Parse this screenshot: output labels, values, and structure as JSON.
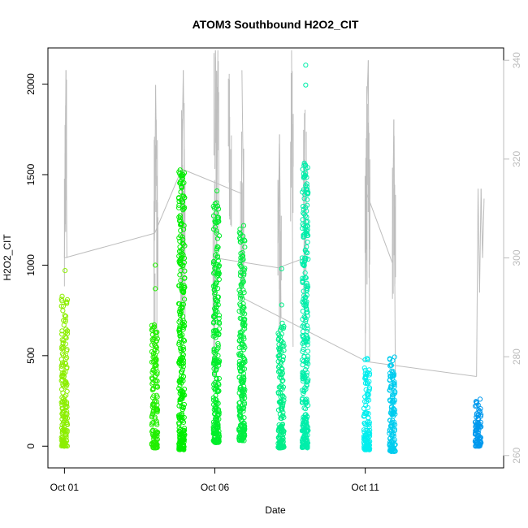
{
  "chart_data": {
    "type": "scatter",
    "title": "ATOM3 Southbound H2O2_CIT",
    "xlabel": "Date",
    "ylabel": "H2O2_CIT",
    "x_ticks": [
      "Oct 01",
      "Oct 06",
      "Oct 11"
    ],
    "x_tick_values": [
      0,
      5,
      10
    ],
    "xlim": [
      -0.55,
      14.6
    ],
    "ylim": [
      -120,
      2200
    ],
    "y_ticks": [
      0,
      500,
      1000,
      1500,
      2000
    ],
    "y2_ticks": [
      260,
      280,
      300,
      320,
      340
    ],
    "y2lim": [
      257.5,
      342.5
    ],
    "grid": false,
    "point_series": [
      {
        "day": 0.0,
        "ymin": 0,
        "ymax": 840,
        "outliers": [
          970
        ],
        "color": "#8cee00"
      },
      {
        "day": 3.0,
        "ymin": -10,
        "ymax": 680,
        "outliers": [
          1000,
          870
        ],
        "color": "#22ee00"
      },
      {
        "day": 3.9,
        "ymin": -20,
        "ymax": 1530,
        "outliers": [
          1380
        ],
        "color": "#00ee00"
      },
      {
        "day": 5.05,
        "ymin": 20,
        "ymax": 1350,
        "outliers": [
          1410
        ],
        "color": "#00ee2a"
      },
      {
        "day": 5.9,
        "ymin": 30,
        "ymax": 1240,
        "outliers": [],
        "color": "#00ee40"
      },
      {
        "day": 7.2,
        "ymin": -10,
        "ymax": 680,
        "outliers": [
          980,
          780
        ],
        "color": "#00ee88"
      },
      {
        "day": 8.0,
        "ymin": -10,
        "ymax": 1570,
        "outliers": [
          2105,
          1995
        ],
        "color": "#00eeaa"
      },
      {
        "day": 10.05,
        "ymin": -20,
        "ymax": 490,
        "outliers": [],
        "color": "#00eeee"
      },
      {
        "day": 10.9,
        "ymin": -30,
        "ymax": 500,
        "outliers": [],
        "color": "#00ccee"
      },
      {
        "day": 13.75,
        "ymin": 0,
        "ymax": 260,
        "outliers": [],
        "color": "#0099ee"
      }
    ],
    "line_series": {
      "name": "",
      "color": "#bdbdbd",
      "points": [
        [
          0.0,
          300
        ],
        [
          0.05,
          338
        ],
        [
          0.08,
          300
        ],
        [
          3.0,
          305
        ],
        [
          3.03,
          335
        ],
        [
          3.06,
          320
        ],
        [
          3.9,
          318
        ],
        [
          3.95,
          338
        ],
        [
          4.0,
          308
        ],
        [
          5.0,
          318
        ],
        [
          5.02,
          342
        ],
        [
          5.06,
          300
        ],
        [
          5.1,
          342
        ],
        [
          5.5,
          338
        ],
        [
          5.9,
          338
        ],
        [
          5.95,
          312
        ],
        [
          7.1,
          303
        ],
        [
          7.15,
          325
        ],
        [
          7.2,
          288
        ],
        [
          7.55,
          342
        ],
        [
          7.6,
          282
        ],
        [
          7.95,
          290
        ],
        [
          8.0,
          330
        ],
        [
          10.0,
          280
        ],
        [
          10.05,
          330
        ],
        [
          10.1,
          340
        ],
        [
          10.15,
          279
        ],
        [
          10.9,
          300
        ],
        [
          10.95,
          328
        ],
        [
          11.0,
          276
        ],
        [
          13.7,
          276
        ],
        [
          13.75,
          314
        ],
        [
          13.8,
          293
        ],
        [
          13.85,
          314
        ],
        [
          13.9,
          300
        ],
        [
          13.95,
          312
        ]
      ]
    },
    "connector_lines": [
      [
        [
          0.0,
          300
        ],
        [
          3.0,
          305
        ]
      ],
      [
        [
          3.0,
          305
        ],
        [
          3.9,
          318
        ]
      ],
      [
        [
          3.9,
          318
        ],
        [
          5.9,
          313
        ]
      ],
      [
        [
          5.0,
          300
        ],
        [
          7.1,
          298
        ]
      ],
      [
        [
          7.1,
          298
        ],
        [
          8.0,
          300
        ]
      ],
      [
        [
          5.9,
          292
        ],
        [
          10.05,
          279
        ]
      ],
      [
        [
          10.05,
          279
        ],
        [
          13.7,
          276
        ]
      ],
      [
        [
          10.05,
          313
        ],
        [
          10.9,
          299
        ]
      ]
    ]
  }
}
